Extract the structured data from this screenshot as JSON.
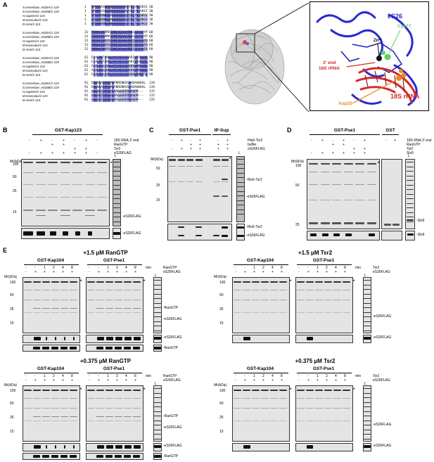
{
  "panels": {
    "A": "A",
    "B": "B",
    "C": "C",
    "D": "D",
    "E": "E"
  },
  "alignment": {
    "species": [
      "S.cerevisiae_eS26A/1-119",
      "S.cerevisiae_eS26B/1-119",
      "H.sapiens/1-115",
      "M.musculus/1-115",
      "D.rerio/1-115"
    ],
    "blocks": [
      {
        "starts": [
          "1",
          "1",
          "1",
          "1",
          "1"
        ],
        "seqs": [
          "MPKKRASNGRNKKGRGHVKPVRCVNCSKSI",
          "MPKKRASNGRNKKGRGHVKPVRCVNCSKSI",
          "MTKKRRNNGRAKKGRGHVQPIRCTNCARCV",
          "MTKKRRNNGRAKKGRGHVQPIRCTNCARCV",
          "MTKKRRNNGRNKKGRGHVQPIRCTNCARCV"
        ],
        "ends": [
          "30",
          "30",
          "30",
          "30",
          "30"
        ]
      },
      {
        "starts": [
          "31",
          "31",
          "31",
          "31",
          "31"
        ],
        "seqs": [
          "PKDKAIKRMAIRNIVEAAAVRDLSEASVYP",
          "PKDKAIKRMAIRNIVEAAAVRDLSEASVYP",
          "PKDKAIKKFVIRNIVEAAAVRDISEASVFD",
          "PKDKAIKKFVIRNIVEAAAVRDISEASVFD",
          "PKDKAIKKFVIRNIVEAAAVRDISEASVFD"
        ],
        "ends": [
          "60",
          "60",
          "60",
          "60",
          "60"
        ]
      },
      {
        "starts": [
          "61",
          "61",
          "61",
          "61",
          "61"
        ],
        "seqs": [
          "EYALPKTYNKLHYCVSCAIHARIVRVRSRE",
          "EYALPKTYNKLHYCVSCAIHARIVRVRSRE",
          "AYVLPKLYVKLHYCVSCAIHSKVVRNRSRE",
          "AYVLPKLYVKLHYCVSCAIHSKVVRNRSRE",
          "GYVLPKLYVKLHYCVSCAIHSKVVRNRSKE"
        ],
        "ends": [
          "90",
          "90",
          "90",
          "90",
          "90"
        ]
      },
      {
        "starts": [
          "91",
          "91",
          "91",
          "91",
          "91"
        ],
        "seqs": [
          "DRKNRAPPPRPRFNRENKVSPADAAKKAL",
          "DRKNRAPPPRPRFNRENKVSPADAAKKAL",
          "ARKDRTPPPRFRPAGAAPRPPPKPM---",
          "ARKDRTPPPRFRPAGAAPRPPPKPM---",
          "ARKDRTPPPRFRPVGAAPRPPPKPM---"
        ],
        "ends": [
          "119",
          "119",
          "115",
          "115",
          "115"
        ]
      }
    ]
  },
  "structure": {
    "protein": "eS26",
    "zinc": "Zn²⁺",
    "cys": "Cys77",
    "end_line1": "3' end",
    "end_line2": "18S rRNA",
    "asp": "Asp33",
    "rrna": "18S rRNA"
  },
  "mw_label": "Mr(kDa)",
  "panel_B": {
    "header": "GST-Kap123",
    "signs": {
      "row1": [
        "-",
        "+",
        "-",
        "+",
        "-",
        "+",
        "-"
      ],
      "row2": [
        "",
        "",
        "+",
        "+",
        "",
        "",
        ""
      ],
      "row3": [
        "",
        "",
        "",
        "",
        "+",
        "+",
        ""
      ],
      "row4": [
        "-",
        "+",
        "+",
        "+",
        "+",
        "+",
        "-"
      ]
    },
    "conditions": [
      "18S RNA 3' end",
      "RanGTP",
      "Tsr2",
      "eS26FLAG"
    ],
    "markers": [
      "100",
      "50",
      "25",
      "15"
    ],
    "band_labels": [
      "-eS26FLAG",
      "-eS26FLAG"
    ],
    "lane_L": "L",
    "asterisk": "*"
  },
  "panel_C": {
    "header": "GST-Pse1",
    "header2": "IP-Sup",
    "signs": {
      "row1": [
        "-",
        "+",
        "-",
        "+",
        "",
        "-",
        "+"
      ],
      "row2": [
        "",
        "",
        "+",
        "+",
        "",
        "+",
        "+"
      ],
      "row3": [
        "-",
        "+",
        "+",
        "+",
        "",
        "+",
        "+"
      ]
    },
    "conditions": [
      "His6-Tsr2",
      "buffer",
      "eS26FLAG"
    ],
    "markers": [
      "50",
      "25",
      "15"
    ],
    "band_labels": [
      "-His6-Tsr2",
      "-eS26FLAG",
      "-His6-Tsr2",
      "-eS26FLAG"
    ],
    "lane_L": "L",
    "asterisk": "*"
  },
  "panel_D": {
    "header": "GST-Pse1",
    "header2": "GST",
    "signs": {
      "row1": [
        "-",
        "+",
        "-",
        "+",
        "-",
        "+"
      ],
      "row2": [
        "",
        "",
        "+",
        "+",
        "",
        ""
      ],
      "row3": [
        "",
        "",
        "",
        "",
        "+",
        "+"
      ],
      "row4": [
        "-",
        "+",
        "+",
        "+",
        "+",
        "+"
      ]
    },
    "signs_gst": [
      "-",
      "+"
    ],
    "conditions": [
      "18S RNA 3' end",
      "RanGTP",
      "Tsr2",
      "Slx9"
    ],
    "markers": [
      "100",
      "50",
      "25"
    ],
    "band_labels": [
      "-Slx9",
      "-Slx9"
    ],
    "lane_L": "L",
    "asterisk": "*"
  },
  "panel_E": {
    "sections": [
      {
        "title": "+1.5 μM RanGTP",
        "left": "GST-Kap104",
        "right": "GST-Pse1",
        "cond1": "RanGTP",
        "cond2": "eS26FLAG",
        "side": [
          "-RanGTP",
          "-eS26FLAG",
          "-eS26FLAG",
          "-RanGTP"
        ]
      },
      {
        "title": "+1.5 μM Tsr2",
        "left": "GST-Kap104",
        "right": "GST-Pse1",
        "cond1": "Tsr2",
        "cond2": "eS26FLAG",
        "side": [
          "-eS26FLAG",
          "-eS26FLAG"
        ]
      },
      {
        "title": "+0.375 μM RanGTP",
        "left": "GST-Kap104",
        "right": "GST-Pse1",
        "cond1": "RanGTP",
        "cond2": "eS26FLAG",
        "side": [
          "-RanGTP",
          "-eS26FLAG",
          "-eS26FLAG",
          "-RanGTP"
        ]
      },
      {
        "title": "+0.375 μM Tsr2",
        "left": "GST-Kap104",
        "right": "GST-Pse1",
        "cond1": "Tsr2",
        "cond2": "eS26FLAG",
        "side": [
          "-eS26FLAG",
          "-eS26FLAG"
        ]
      }
    ],
    "time_row": [
      "-",
      "-",
      "1",
      "2",
      "4",
      "8"
    ],
    "time_unit": "min",
    "plus_row": [
      "-",
      "+",
      "+",
      "+",
      "+",
      "+"
    ],
    "markers": [
      "100",
      "50",
      "25",
      "15"
    ],
    "lane_L": "L",
    "asterisk": "*"
  },
  "colors": {
    "highlight": "#6b6bd8",
    "protein": "#2a2ad0",
    "rna": "#d42a2a",
    "zinc": "#111111",
    "cys": "#5fd35f",
    "asp": "#e88a1e"
  }
}
